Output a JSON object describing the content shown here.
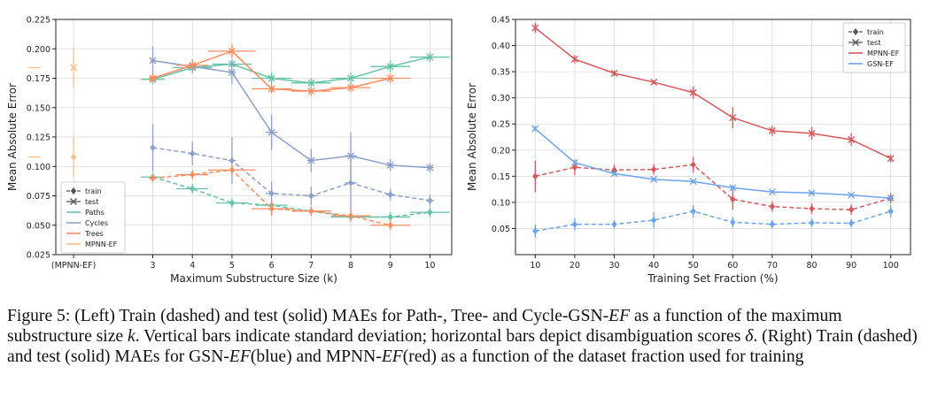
{
  "caption": {
    "figure_label": "Figure 5:",
    "segments": [
      {
        "t": " (Left) Train (dashed) and test (solid) MAEs for Path-, Tree- and Cycle-GSN-"
      },
      {
        "t": "EF",
        "i": true
      },
      {
        "t": " as a function of the maximum substructure size "
      },
      {
        "t": "k",
        "i": true
      },
      {
        "t": ". Vertical bars indicate standard deviation; horizontal bars depict disambiguation scores "
      },
      {
        "t": "δ",
        "i": true
      },
      {
        "t": ". (Right) Train (dashed) and test (solid) MAEs for GSN-"
      },
      {
        "t": "EF",
        "i": true
      },
      {
        "t": "(blue) and MPNN-"
      },
      {
        "t": "EF",
        "i": true
      },
      {
        "t": "(red) as a function of the dataset fraction used for training"
      }
    ]
  },
  "chart_data": [
    {
      "type": "line",
      "xlabel": "Maximum Substructure Size (k)",
      "ylabel": "Mean Absolute Error",
      "categories": [
        "(MPNN-EF)",
        "3",
        "4",
        "5",
        "6",
        "7",
        "8",
        "9",
        "10"
      ],
      "ylim": [
        0.025,
        0.225
      ],
      "yticks": [
        0.025,
        0.05,
        0.075,
        0.1,
        0.125,
        0.15,
        0.175,
        0.2,
        0.225
      ],
      "grid": true,
      "legend_position": "lower-left",
      "legend": [
        {
          "label": "train",
          "kind": "style",
          "dashed": true,
          "marker": "diamond"
        },
        {
          "label": "test",
          "kind": "style",
          "dashed": false,
          "marker": "x"
        },
        {
          "label": "Paths",
          "kind": "color",
          "color": "#66c2a5"
        },
        {
          "label": "Cycles",
          "kind": "color",
          "color": "#8da0cb"
        },
        {
          "label": "Trees",
          "kind": "color",
          "color": "#fc8d62"
        },
        {
          "label": "MPNN-EF",
          "kind": "color",
          "color": "#fdc086"
        }
      ],
      "series": [
        {
          "name": "Paths",
          "split": "test",
          "color": "#66c2a5",
          "dashed": false,
          "x": [
            3,
            4,
            5,
            6,
            7,
            8,
            9,
            10
          ],
          "values": [
            0.174,
            0.184,
            0.187,
            0.175,
            0.171,
            0.175,
            0.185,
            0.193
          ],
          "std": [
            0.004,
            0.004,
            0.004,
            0.005,
            0.004,
            0.005,
            0.005,
            0.004
          ],
          "hbar": [
            0.3,
            0.5,
            0.5,
            0.5,
            0.5,
            0.5,
            0.5,
            0.5
          ]
        },
        {
          "name": "Paths",
          "split": "train",
          "color": "#66c2a5",
          "dashed": true,
          "x": [
            3,
            4,
            5,
            6,
            7,
            8,
            9,
            10
          ],
          "values": [
            0.091,
            0.081,
            0.069,
            0.067,
            0.062,
            0.057,
            0.057,
            0.061
          ],
          "std": [
            0.004,
            0.004,
            0.004,
            0.004,
            0.004,
            0.004,
            0.004,
            0.004
          ],
          "hbar": [
            0.3,
            0.4,
            0.4,
            0.4,
            0.4,
            0.5,
            0.5,
            0.5
          ]
        },
        {
          "name": "Cycles",
          "split": "test",
          "color": "#8da0cb",
          "dashed": false,
          "x": [
            3,
            4,
            5,
            6,
            7,
            8,
            9,
            10
          ],
          "values": [
            0.19,
            0.185,
            0.18,
            0.129,
            0.105,
            0.109,
            0.101,
            0.099
          ],
          "std": [
            0.012,
            0.006,
            0.01,
            0.015,
            0.01,
            0.02,
            0.005,
            0.004
          ],
          "hbar": [
            0.05,
            0.1,
            0.1,
            0.15,
            0.1,
            0.15,
            0.1,
            0.1
          ]
        },
        {
          "name": "Cycles",
          "split": "train",
          "color": "#8da0cb",
          "dashed": true,
          "x": [
            3,
            4,
            5,
            6,
            7,
            8,
            9,
            10
          ],
          "values": [
            0.116,
            0.111,
            0.105,
            0.077,
            0.075,
            0.086,
            0.076,
            0.071
          ],
          "std": [
            0.02,
            0.01,
            0.02,
            0.01,
            0.008,
            0.025,
            0.005,
            0.005
          ],
          "hbar": [
            0.05,
            0.1,
            0.1,
            0.15,
            0.15,
            0.15,
            0.1,
            0.1
          ]
        },
        {
          "name": "Trees",
          "split": "test",
          "color": "#fc8d62",
          "dashed": false,
          "x": [
            3,
            4,
            5,
            6,
            7,
            8,
            9
          ],
          "values": [
            0.175,
            0.186,
            0.198,
            0.166,
            0.164,
            0.167,
            0.175
          ],
          "std": [
            0.004,
            0.004,
            0.006,
            0.004,
            0.004,
            0.004,
            0.004
          ],
          "hbar": [
            0.1,
            0.4,
            0.6,
            0.5,
            0.5,
            0.5,
            0.5
          ]
        },
        {
          "name": "Trees",
          "split": "train",
          "color": "#fc8d62",
          "dashed": true,
          "x": [
            3,
            4,
            5,
            6,
            7,
            8,
            9
          ],
          "values": [
            0.09,
            0.093,
            0.097,
            0.064,
            0.062,
            0.058,
            0.05
          ],
          "std": [
            0.003,
            0.004,
            0.004,
            0.006,
            0.004,
            0.005,
            0.004
          ],
          "hbar": [
            0.1,
            0.4,
            0.6,
            0.5,
            0.5,
            0.5,
            0.5
          ]
        },
        {
          "name": "MPNN-EF",
          "split": "test",
          "color": "#fdc086",
          "dashed": false,
          "x": [
            0
          ],
          "values": [
            0.184
          ],
          "std": [
            0.017
          ],
          "hbar": [
            0.15
          ]
        },
        {
          "name": "MPNN-EF",
          "split": "train",
          "color": "#fdc086",
          "dashed": true,
          "x": [
            0
          ],
          "values": [
            0.108
          ],
          "std": [
            0.017
          ],
          "hbar": [
            0.15
          ]
        }
      ]
    },
    {
      "type": "line",
      "xlabel": "Training Set Fraction (%)",
      "ylabel": "Mean Absolute Error",
      "x": [
        10,
        20,
        30,
        40,
        50,
        60,
        70,
        80,
        90,
        100
      ],
      "xlim": [
        5,
        105
      ],
      "ylim": [
        0.0,
        0.45
      ],
      "yticks": [
        0.05,
        0.1,
        0.15,
        0.2,
        0.25,
        0.3,
        0.35,
        0.4,
        0.45
      ],
      "grid": true,
      "legend_position": "top-right",
      "legend": [
        {
          "label": "train",
          "kind": "style",
          "dashed": true,
          "marker": "diamond"
        },
        {
          "label": "test",
          "kind": "style",
          "dashed": false,
          "marker": "x"
        },
        {
          "label": "MPNN-EF",
          "kind": "color",
          "color": "#d6595b"
        },
        {
          "label": "GSN-EF",
          "kind": "color",
          "color": "#6fa3ef"
        }
      ],
      "series": [
        {
          "name": "MPNN-EF",
          "split": "test",
          "color": "#d6595b",
          "dashed": false,
          "values": [
            0.434,
            0.374,
            0.347,
            0.33,
            0.31,
            0.262,
            0.237,
            0.232,
            0.22,
            0.184
          ],
          "std": [
            0.01,
            0.008,
            0.006,
            0.004,
            0.012,
            0.02,
            0.01,
            0.012,
            0.012,
            0.008
          ]
        },
        {
          "name": "MPNN-EF",
          "split": "train",
          "color": "#d6595b",
          "dashed": true,
          "values": [
            0.15,
            0.167,
            0.162,
            0.163,
            0.172,
            0.106,
            0.092,
            0.088,
            0.086,
            0.108
          ],
          "std": [
            0.03,
            0.015,
            0.01,
            0.01,
            0.015,
            0.02,
            0.01,
            0.01,
            0.01,
            0.01
          ]
        },
        {
          "name": "GSN-EF",
          "split": "test",
          "color": "#6fa3ef",
          "dashed": false,
          "values": [
            0.241,
            0.176,
            0.155,
            0.144,
            0.14,
            0.128,
            0.12,
            0.118,
            0.114,
            0.108
          ],
          "std": [
            0.004,
            0.004,
            0.003,
            0.003,
            0.003,
            0.005,
            0.003,
            0.003,
            0.003,
            0.003
          ]
        },
        {
          "name": "GSN-EF",
          "split": "train",
          "color": "#6fa3ef",
          "dashed": true,
          "values": [
            0.045,
            0.058,
            0.058,
            0.066,
            0.083,
            0.062,
            0.058,
            0.061,
            0.06,
            0.083
          ],
          "std": [
            0.012,
            0.012,
            0.008,
            0.015,
            0.012,
            0.01,
            0.008,
            0.008,
            0.008,
            0.012
          ]
        }
      ]
    }
  ]
}
